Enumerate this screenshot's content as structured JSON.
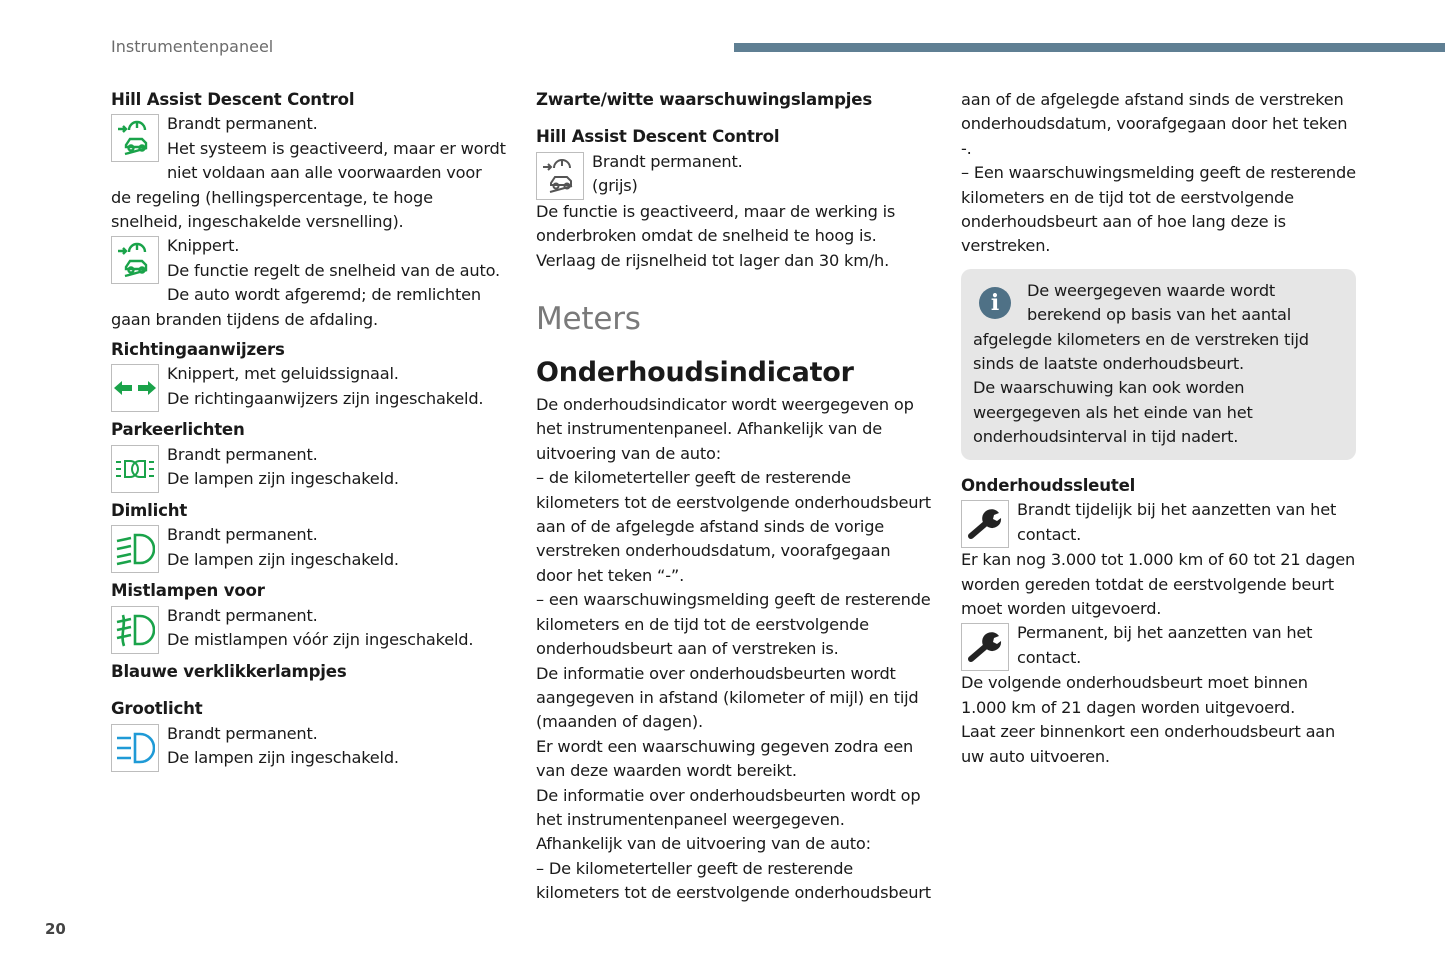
{
  "header": {
    "section": "Instrumentenpaneel",
    "accent_color": "#5f7f93"
  },
  "page_number": "20",
  "col1": {
    "hadc_title": "Hill Assist Descent Control",
    "hadc1": "Brandt permanent.",
    "hadc1_text": "Het systeem is geactiveerd, maar er wordt niet voldaan aan alle voorwaarden voor de regeling (hellingspercentage, te hoge snelheid, ingeschakelde versnelling).",
    "hadc2": "Knippert.",
    "hadc2_text": "De functie regelt de snelheid van de auto. De auto wordt afgeremd; de remlichten gaan branden tijdens de afdaling.",
    "turn_title": "Richtingaanwijzers",
    "turn1": "Knippert, met geluidssignaal.",
    "turn2": "De richtingaanwijzers zijn ingeschakeld.",
    "park_title": "Parkeerlichten",
    "park1": "Brandt permanent.",
    "park2": "De lampen zijn ingeschakeld.",
    "dip_title": "Dimlicht",
    "dip1": "Brandt permanent.",
    "dip2": "De lampen zijn ingeschakeld.",
    "fog_title": "Mistlampen voor",
    "fog1": "Brandt permanent.",
    "fog2": "De mistlampen vóór zijn ingeschakeld.",
    "blue_title": "Blauwe verklikkerlampjes",
    "main_title": "Grootlicht",
    "main1": "Brandt permanent.",
    "main2": "De lampen zijn ingeschakeld.",
    "green": "#1aa34a",
    "blue": "#1f9ad6"
  },
  "col2": {
    "bw_title": "Zwarte/witte waarschuwingslampjes",
    "hadc_title": "Hill Assist Descent Control",
    "hadc1": "Brandt permanent.",
    "hadc2": "(grijs)",
    "hadc_text": "De functie is geactiveerd, maar de werking is onderbroken omdat de snelheid te hoog is. Verlaag de rijsnelheid tot lager dan 30 km/h.",
    "meters": "Meters",
    "oi_title": "Onderhoudsindicator",
    "p1": "De onderhoudsindicator wordt weergegeven op het instrumentenpaneel. Afhankelijk van de uitvoering van de auto:",
    "p2": "–  de kilometerteller geeft de resterende kilometers tot de eerstvolgende onderhoudsbeurt aan of de afgelegde afstand sinds de vorige verstreken onderhoudsdatum, voorafgegaan door het teken “-”.",
    "p3": "–  een waarschuwingsmelding geeft de resterende kilometers en de tijd tot de eerstvolgende onderhoudsbeurt aan of verstreken is.",
    "p4": "De informatie over onderhoudsbeurten wordt aangegeven in afstand (kilometer of mijl) en tijd (maanden of dagen).",
    "p5": "Er wordt een waarschuwing gegeven zodra een van deze waarden wordt bereikt.",
    "p6": "De informatie over onderhoudsbeurten wordt op het instrumentenpaneel weergegeven. Afhankelijk van de uitvoering van de auto:",
    "p7": "–  De kilometerteller geeft de resterende kilometers tot de eerstvolgende onderhoudsbeurt"
  },
  "col3": {
    "p1": "aan of de afgelegde afstand sinds de verstreken onderhoudsdatum, voorafgegaan door het teken -.",
    "p2": "–  Een waarschuwingsmelding geeft de resterende kilometers en de tijd tot de eerstvolgende onderhoudsbeurt aan of hoe lang deze is verstreken.",
    "note1": "De weergegeven waarde wordt berekend op basis van het aantal afgelegde kilometers en de verstreken tijd sinds de laatste onderhoudsbeurt.",
    "note2": "De waarschuwing kan ook worden weergegeven als het einde van het onderhoudsinterval in tijd nadert.",
    "key_title": "Onderhoudssleutel",
    "key1": "Brandt tijdelijk bij het aanzetten van het contact.",
    "key1_text": "Er kan nog 3.000 tot 1.000 km of 60 tot 21 dagen worden gereden totdat de eerstvolgende beurt moet worden uitgevoerd.",
    "key2": "Permanent, bij het aanzetten van het contact.",
    "key2_text": "De volgende onderhoudsbeurt moet binnen 1.000 km of 21 dagen worden uitgevoerd.",
    "key3_text": "Laat zeer binnenkort een onderhoudsbeurt aan uw auto uitvoeren."
  }
}
